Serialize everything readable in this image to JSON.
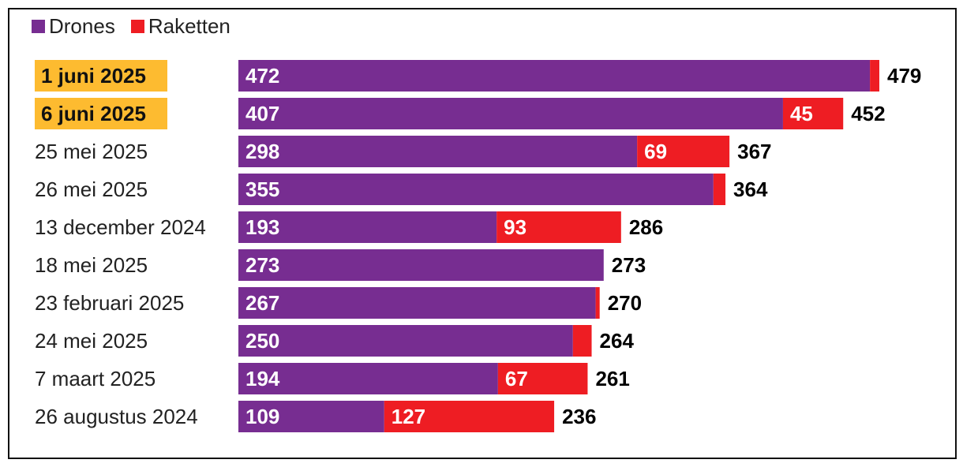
{
  "chart_data": {
    "type": "bar",
    "orientation": "horizontal",
    "stacked": true,
    "legend_position": "top-left",
    "grid": false,
    "xlim": [
      0,
      479
    ],
    "categories": [
      "1 juni 2025",
      "6 juni 2025",
      "25 mei 2025",
      "26 mei 2025",
      "13 december 2024",
      "18 mei 2025",
      "23 februari 2025",
      "24 mei 2025",
      "7 maart 2025",
      "26 augustus 2024"
    ],
    "highlighted": [
      true,
      true,
      false,
      false,
      false,
      false,
      false,
      false,
      false,
      false
    ],
    "series": [
      {
        "name": "Drones",
        "color": "#772d91",
        "values": [
          472,
          407,
          298,
          355,
          193,
          273,
          267,
          250,
          194,
          109
        ]
      },
      {
        "name": "Raketten",
        "color": "#ee1d23",
        "values": [
          7,
          45,
          69,
          9,
          93,
          0,
          3,
          14,
          67,
          127
        ]
      }
    ],
    "drones_labels": [
      "472",
      "407",
      "298",
      "355",
      "193",
      "273",
      "267",
      "250",
      "194",
      "109"
    ],
    "raketten_labels": [
      "",
      "45",
      "69",
      "",
      "93",
      "",
      "",
      "",
      "67",
      "127"
    ],
    "totals": [
      479,
      452,
      367,
      364,
      286,
      273,
      270,
      264,
      261,
      236
    ],
    "total_labels": [
      "479",
      "452",
      "367",
      "364",
      "286",
      "273",
      "270",
      "264",
      "261",
      "236"
    ],
    "highlight_color": "#fdbb30"
  }
}
